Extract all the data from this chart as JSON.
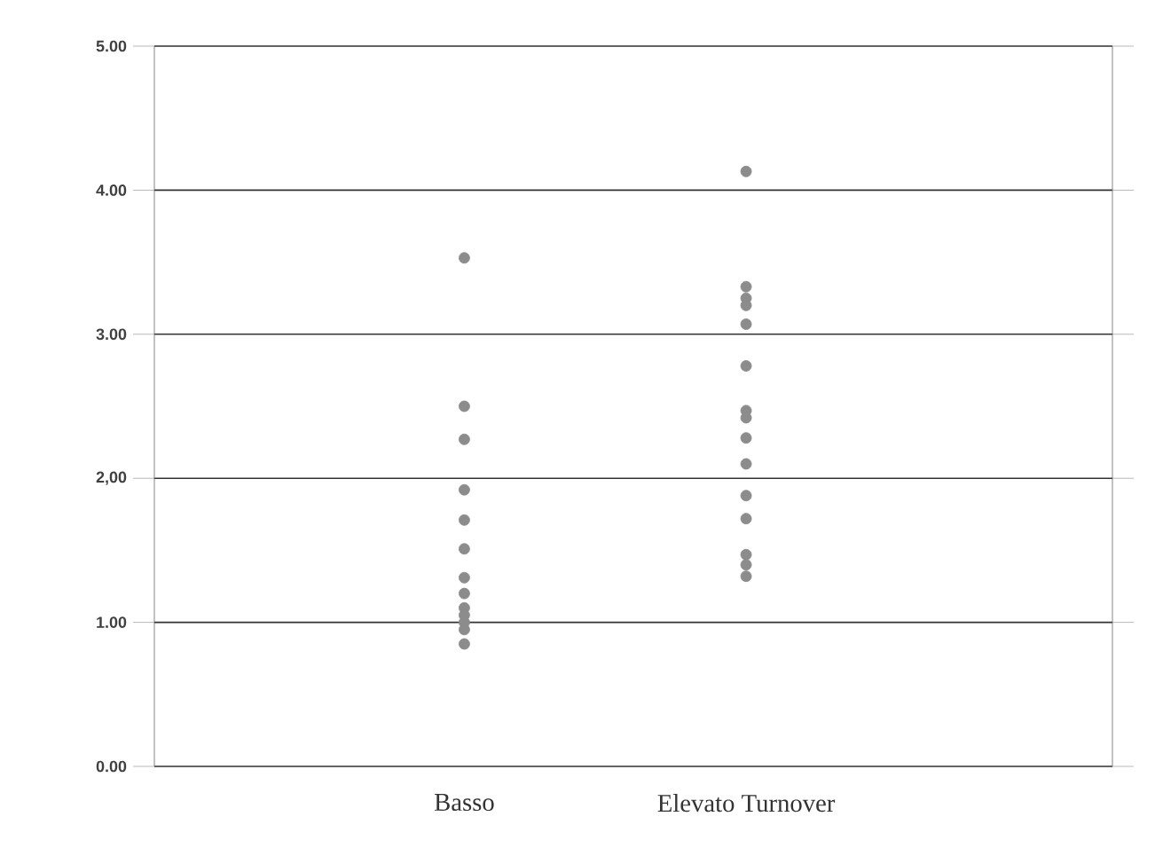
{
  "chart_data": {
    "type": "scatter",
    "categories": [
      "Basso",
      "Elevato Turnover"
    ],
    "series": [
      {
        "color": "#8c8c8c",
        "x": [
          "Basso",
          "Basso",
          "Basso",
          "Basso",
          "Basso",
          "Basso",
          "Basso",
          "Basso",
          "Basso",
          "Basso",
          "Basso",
          "Basso",
          "Basso"
        ],
        "values": [
          3.53,
          2.5,
          2.27,
          1.92,
          1.71,
          1.51,
          1.31,
          1.2,
          1.1,
          1.05,
          1.0,
          0.95,
          0.85
        ]
      },
      {
        "color": "#8c8c8c",
        "x": [
          "Elevato Turnover",
          "Elevato Turnover",
          "Elevato Turnover",
          "Elevato Turnover",
          "Elevato Turnover",
          "Elevato Turnover",
          "Elevato Turnover",
          "Elevato Turnover",
          "Elevato Turnover",
          "Elevato Turnover",
          "Elevato Turnover",
          "Elevato Turnover",
          "Elevato Turnover",
          "Elevato Turnover",
          "Elevato Turnover"
        ],
        "values": [
          4.13,
          3.33,
          3.25,
          3.2,
          3.07,
          2.78,
          2.47,
          2.42,
          2.28,
          2.1,
          1.88,
          1.72,
          1.47,
          1.4,
          1.32
        ]
      }
    ],
    "ylim": [
      0,
      5
    ],
    "yticks": [
      {
        "value": 0,
        "label": "0.00"
      },
      {
        "value": 1,
        "label": "1.00"
      },
      {
        "value": 2,
        "label": "2,00"
      },
      {
        "value": 3,
        "label": "3.00"
      },
      {
        "value": 4,
        "label": "4.00"
      },
      {
        "value": 5,
        "label": "5.00"
      }
    ],
    "grid": "y",
    "legend": false
  }
}
